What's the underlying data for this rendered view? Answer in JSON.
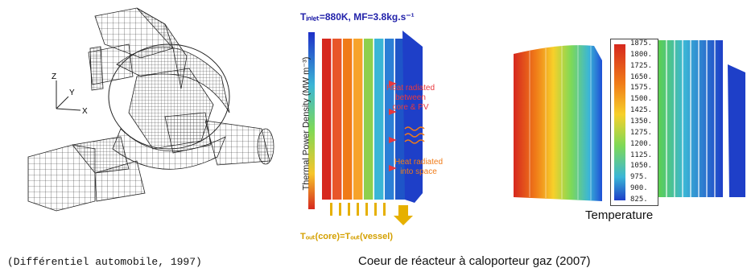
{
  "left_figure": {
    "axes": {
      "z": "Z",
      "y": "Y",
      "x": "X"
    },
    "caption": "(Différentiel automobile, 1997)"
  },
  "middle_figure": {
    "title": "Tᵢₙₗₑₜ=880K, MF=3.8kg.s⁻¹",
    "ylabel": "Thermal Power Density (MW m⁻³)",
    "annotation_red": [
      "Heat radiated",
      "between",
      "core & PV"
    ],
    "annotation_orange": [
      "Heat radiated",
      "into space"
    ],
    "bottom_label": "Tₒᵤₜ(core)=Tₒᵤₜ(vessel)",
    "colors": {
      "title": "#2222aa",
      "red": "#e8383f",
      "orange": "#f07b18",
      "yellow": "#d4a000"
    }
  },
  "right_figure": {
    "legend_values": [
      "1875.",
      "1800.",
      "1725.",
      "1650.",
      "1575.",
      "1500.",
      "1425.",
      "1350.",
      "1275.",
      "1200.",
      "1125.",
      "1050.",
      "975.",
      "900.",
      "825."
    ],
    "label": "Temperature"
  },
  "caption_right": "Coeur de réacteur à caloporteur gaz (2007)"
}
